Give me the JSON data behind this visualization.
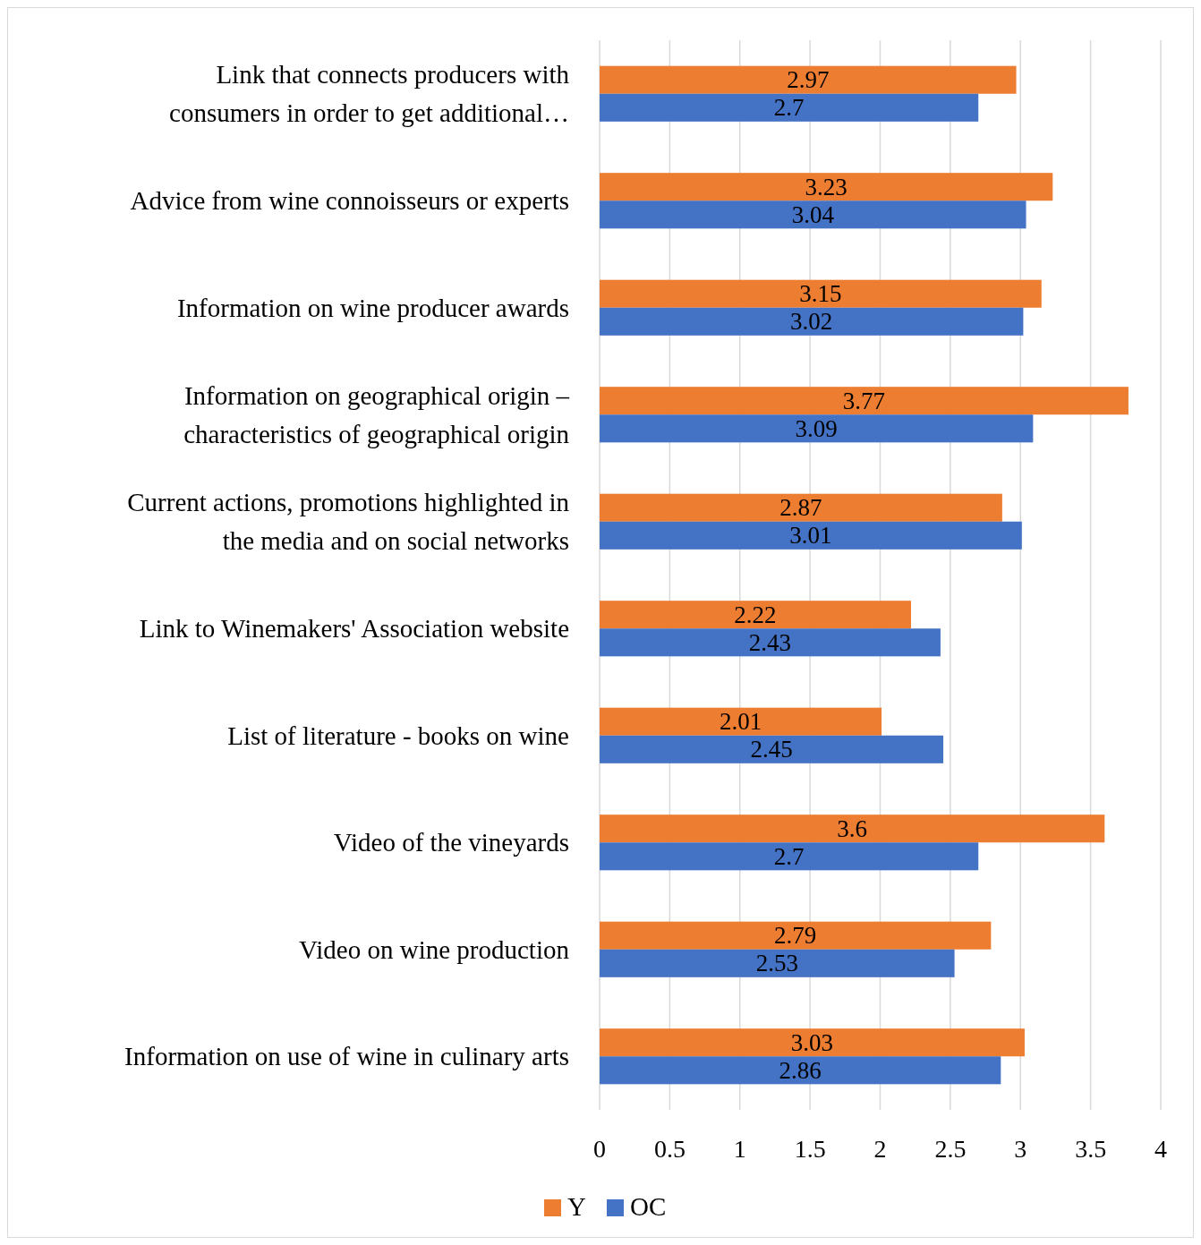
{
  "chart_data": {
    "type": "bar",
    "orientation": "horizontal",
    "categories": [
      "Link that connects producers with\nconsumers in order to get additional…",
      "Advice from wine connoisseurs or experts",
      "Information on wine producer awards",
      "Information on geographical origin –\ncharacteristics of geographical origin",
      "Current actions, promotions highlighted in\nthe media and on social networks",
      "Link to Winemakers' Association website",
      "List of literature - books on wine",
      "Video of the vineyards",
      "Video on wine production",
      "Information on use of wine in culinary arts"
    ],
    "series": [
      {
        "name": "Y",
        "color": "#ed7d31",
        "values": [
          2.97,
          3.23,
          3.15,
          3.77,
          2.87,
          2.22,
          2.01,
          3.6,
          2.79,
          3.03
        ]
      },
      {
        "name": "OC",
        "color": "#4472c4",
        "values": [
          2.7,
          3.04,
          3.02,
          3.09,
          3.01,
          2.43,
          2.45,
          2.7,
          2.53,
          2.86
        ]
      }
    ],
    "xlim": [
      0,
      4
    ],
    "xticks": [
      0,
      0.5,
      1,
      1.5,
      2,
      2.5,
      3,
      3.5,
      4
    ],
    "grid": "x",
    "legend": "bottom",
    "data_labels": true
  }
}
